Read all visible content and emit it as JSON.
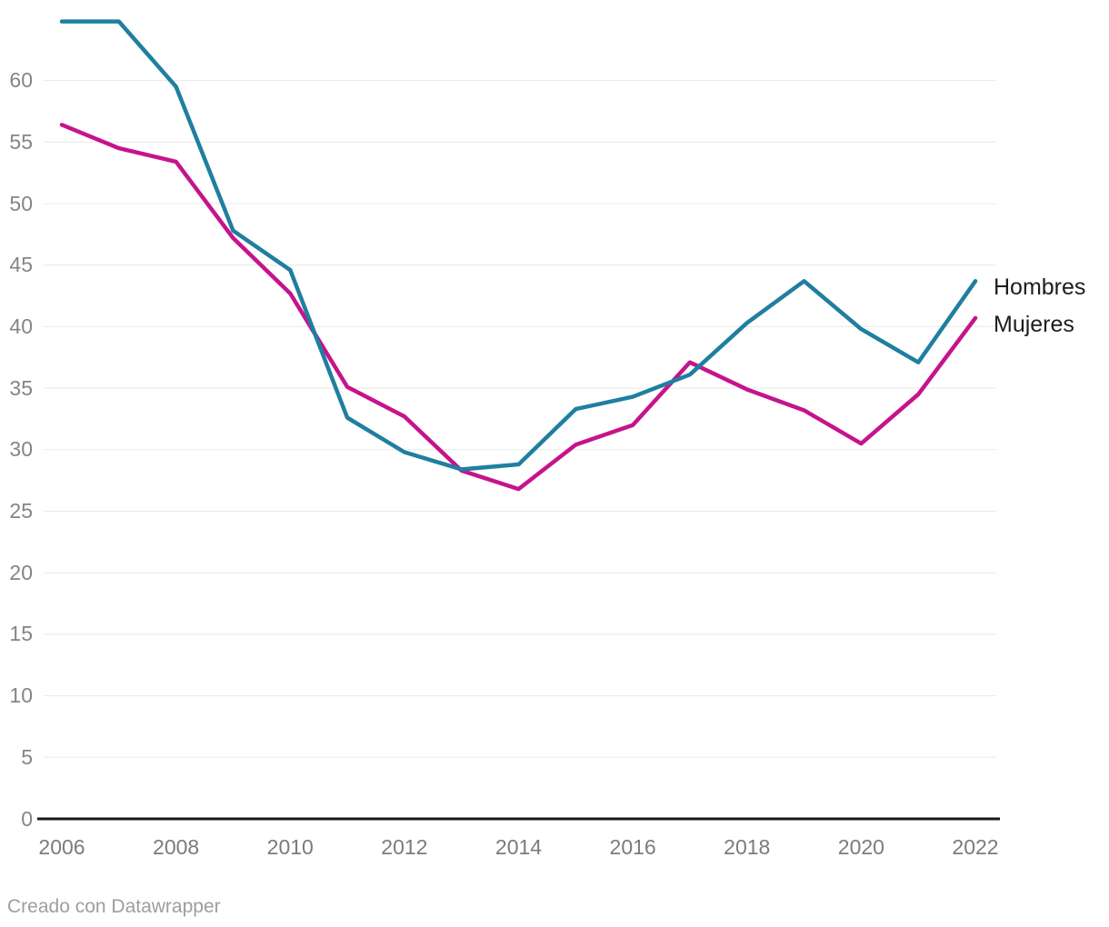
{
  "chart_data": {
    "type": "line",
    "x": [
      2006,
      2007,
      2008,
      2009,
      2010,
      2011,
      2012,
      2013,
      2014,
      2015,
      2016,
      2017,
      2018,
      2019,
      2020,
      2021,
      2022
    ],
    "series": [
      {
        "name": "Hombres",
        "color": "#1f7f9f",
        "values": [
          64.8,
          64.8,
          59.5,
          47.8,
          44.6,
          32.6,
          29.8,
          28.4,
          28.8,
          33.3,
          34.3,
          36.1,
          40.3,
          43.7,
          39.8,
          37.1,
          43.7
        ]
      },
      {
        "name": "Mujeres",
        "color": "#c5148c",
        "values": [
          56.4,
          54.5,
          53.4,
          47.2,
          42.7,
          35.1,
          32.7,
          28.3,
          26.8,
          30.4,
          32.0,
          37.1,
          34.9,
          33.2,
          30.5,
          34.5,
          40.7
        ]
      }
    ],
    "title": "",
    "xlabel": "",
    "ylabel": "",
    "ylim": [
      0,
      65
    ],
    "yticks": [
      0,
      5,
      10,
      15,
      20,
      25,
      30,
      35,
      40,
      45,
      50,
      55,
      60
    ],
    "xticks": [
      2006,
      2008,
      2010,
      2012,
      2014,
      2016,
      2018,
      2020,
      2022
    ],
    "grid": true,
    "legend_position": "right-of-line-ends"
  },
  "colors": {
    "background": "#ffffff",
    "grid_line": "#e8e8e8",
    "axis_line": "#171717",
    "y_tick_label": "#858585",
    "x_tick_label": "#7b7b7b",
    "legend_text": "#1d1d1d",
    "footer_text": "#9e9e9e"
  },
  "footer": {
    "credit": "Creado con Datawrapper"
  }
}
